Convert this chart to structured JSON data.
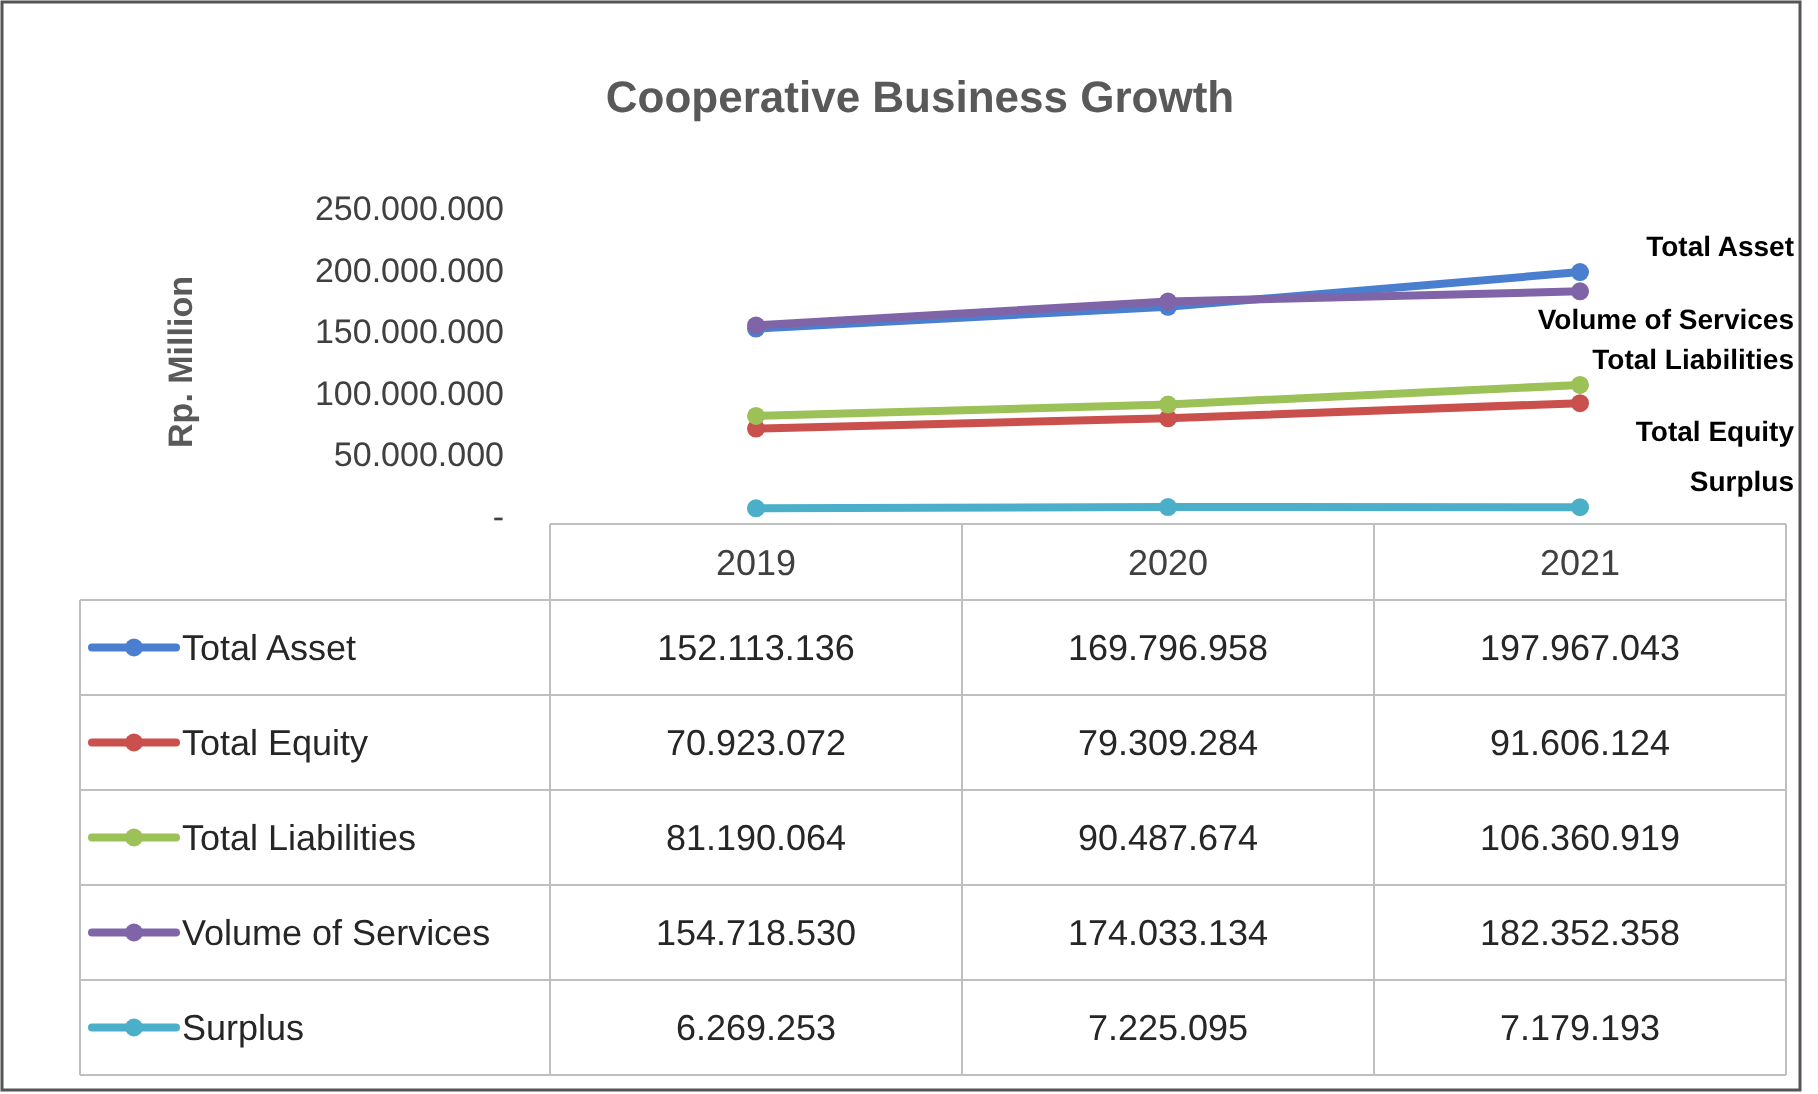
{
  "chart_data": {
    "type": "line",
    "title": "Cooperative Business Growth",
    "ylabel": "Rp. Million",
    "categories": [
      "2019",
      "2020",
      "2021"
    ],
    "ylim": [
      0,
      250000000
    ],
    "yticks": [
      {
        "value": 0,
        "label": "-"
      },
      {
        "value": 50000000,
        "label": "50.000.000"
      },
      {
        "value": 100000000,
        "label": "100.000.000"
      },
      {
        "value": 150000000,
        "label": "150.000.000"
      },
      {
        "value": 200000000,
        "label": "200.000.000"
      },
      {
        "value": 250000000,
        "label": "250.000.000"
      }
    ],
    "marker": "circle",
    "legend": "bottom",
    "series": [
      {
        "name": "Total Asset",
        "color": "#4a7fd0",
        "values": [
          152113136,
          169796958,
          197967043
        ],
        "value_labels": [
          "152.113.136",
          "169.796.958",
          "197.967.043"
        ]
      },
      {
        "name": "Total Equity",
        "color": "#c9504d",
        "values": [
          70923072,
          79309284,
          91606124
        ],
        "value_labels": [
          "70.923.072",
          "79.309.284",
          "91.606.124"
        ]
      },
      {
        "name": "Total Liabilities",
        "color": "#9bc157",
        "values": [
          81190064,
          90487674,
          106360919
        ],
        "value_labels": [
          "81.190.064",
          "90.487.674",
          "106.360.919"
        ]
      },
      {
        "name": "Volume of Services",
        "color": "#8064a8",
        "values": [
          154718530,
          174033134,
          182352358
        ],
        "value_labels": [
          "154.718.530",
          "174.033.134",
          "182.352.358"
        ]
      },
      {
        "name": "Surplus",
        "color": "#4bafc9",
        "values": [
          6269253,
          7225095,
          7179193
        ],
        "value_labels": [
          "6.269.253",
          "7.225.095",
          "7.179.193"
        ]
      }
    ]
  }
}
